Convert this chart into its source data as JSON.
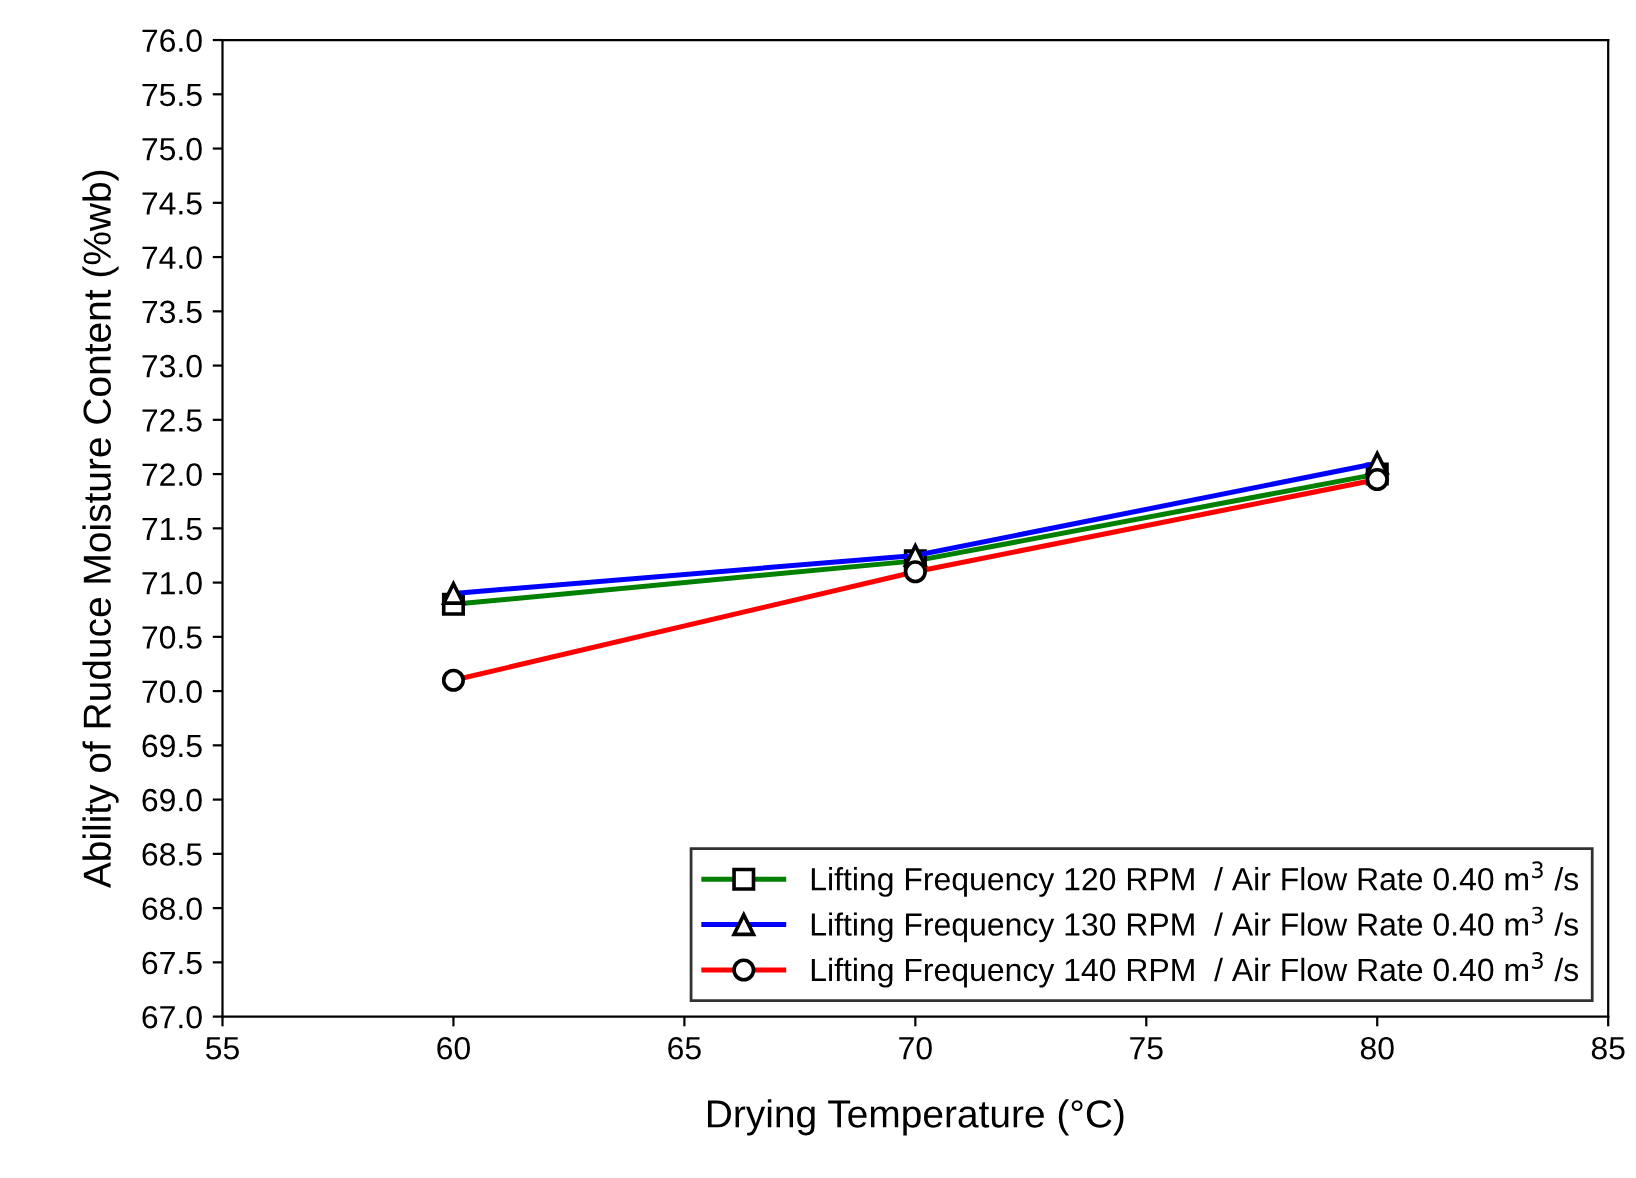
{
  "chart_data": {
    "type": "line",
    "xlabel": "Drying Temperature (°C)",
    "ylabel": "Ability of Ruduce Moisture Content (%wb)",
    "x": [
      60,
      70,
      80
    ],
    "series": [
      {
        "name": "Lifting Frequency 120 RPM  / Air Flow Rate 0.40 m$^{3}$ /s",
        "color": "#008000",
        "marker": "square",
        "values": [
          70.8,
          71.2,
          72.0
        ]
      },
      {
        "name": "Lifting Frequency 130 RPM  / Air Flow Rate 0.40 m$^{3}$ /s",
        "color": "#0000ff",
        "marker": "triangle",
        "values": [
          70.9,
          71.25,
          72.1
        ]
      },
      {
        "name": "Lifting Frequency 140 RPM  / Air Flow Rate 0.40 m$^{3}$ /s",
        "color": "#ff0000",
        "marker": "circle",
        "values": [
          70.1,
          71.1,
          71.95
        ]
      }
    ],
    "xlim": [
      55,
      85
    ],
    "xticks": [
      55,
      60,
      65,
      70,
      75,
      80,
      85
    ],
    "ylim": [
      67,
      76
    ],
    "yticks": [
      {
        "value": 67,
        "label": "67.0"
      },
      {
        "value": 67.5,
        "label": "67.5"
      },
      {
        "value": 68,
        "label": "68.0"
      },
      {
        "value": 68.5,
        "label": "68.5"
      },
      {
        "value": 69,
        "label": "69.0"
      },
      {
        "value": 69.5,
        "label": "69.5"
      },
      {
        "value": 70,
        "label": "70.0"
      },
      {
        "value": 70.5,
        "label": "70.5"
      },
      {
        "value": 71,
        "label": "71.0"
      },
      {
        "value": 71.5,
        "label": "71.5"
      },
      {
        "value": 72,
        "label": "72.0"
      },
      {
        "value": 72.5,
        "label": "72.5"
      },
      {
        "value": 73,
        "label": "73.0"
      },
      {
        "value": 73.5,
        "label": "73.5"
      },
      {
        "value": 74,
        "label": "74.0"
      },
      {
        "value": 74.5,
        "label": "74.5"
      },
      {
        "value": 75,
        "label": "75.0"
      },
      {
        "value": 75.5,
        "label": "75.5"
      },
      {
        "value": 76,
        "label": "76.0"
      }
    ],
    "grid": false,
    "legend": "bottom right",
    "line_style": "solid"
  }
}
